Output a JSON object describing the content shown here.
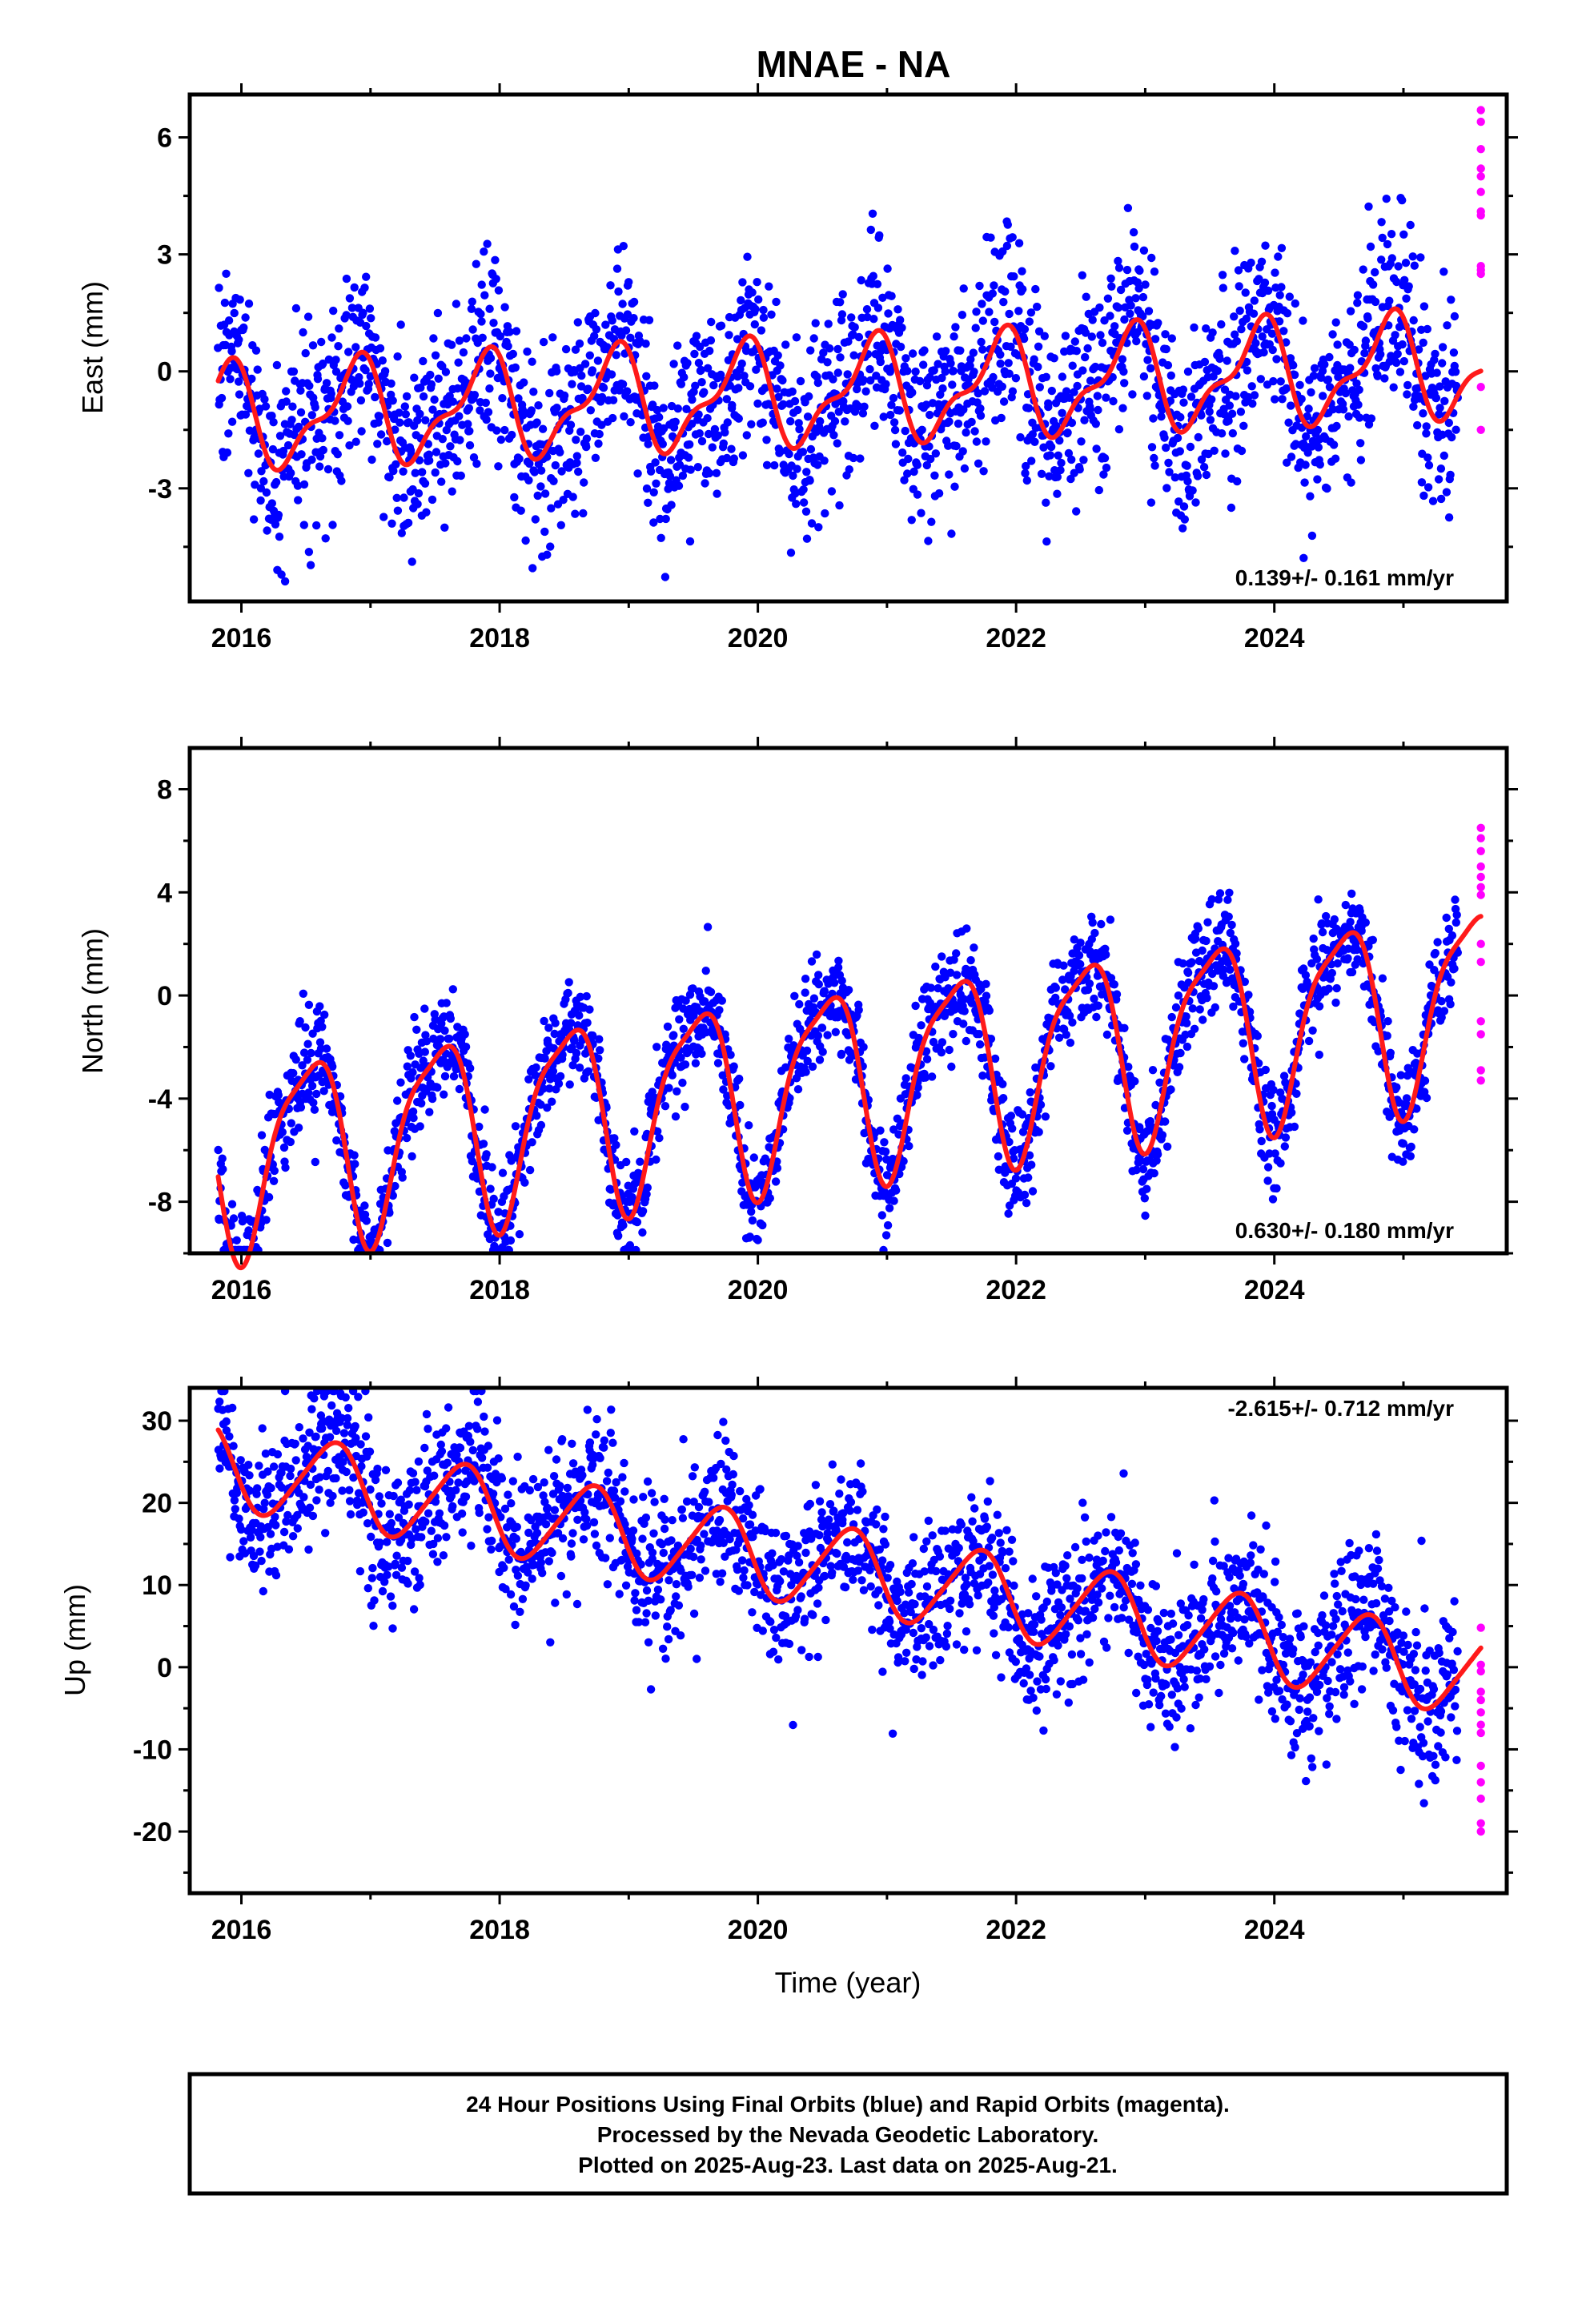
{
  "title": "MNAE - NA",
  "colors": {
    "final": "#0000ff",
    "rapid": "#ff00ff",
    "fit": "#ff1a1a",
    "frame": "#000000"
  },
  "x_axis": {
    "label": "Time (year)",
    "range": [
      2015.6,
      2025.8
    ],
    "ticks": [
      2016,
      2018,
      2020,
      2022,
      2024
    ]
  },
  "chart_data": [
    {
      "type": "scatter",
      "ylabel": "East (mm)",
      "ylim": [
        -5.9,
        7.1
      ],
      "yticks": [
        -3,
        0,
        3,
        6
      ],
      "rate_text": "0.139+/- 0.161 mm/yr",
      "rate_position": "bottom-right",
      "trend_mm_per_yr": 0.139,
      "offset": -0.55,
      "annual_amplitude": 1.2,
      "annual_phase": 0.62,
      "semiannual_amplitude": 0.5,
      "semiannual_phase": 0.35,
      "noise_sd": 1.25,
      "series": [
        {
          "name": "Final Orbits",
          "color": "#0000ff",
          "x_start": 2015.82,
          "x_end": 2025.42,
          "n_points": 2200
        },
        {
          "name": "Rapid Orbits",
          "color": "#ff00ff",
          "x": 2025.6,
          "values": [
            6.7,
            6.4,
            5.7,
            5.2,
            5.0,
            4.6,
            4.1,
            4.0,
            2.7,
            2.6,
            2.5,
            -0.4,
            -1.5
          ]
        }
      ]
    },
    {
      "type": "scatter",
      "ylabel": "North (mm)",
      "ylim": [
        -10.0,
        9.6
      ],
      "yticks": [
        -8,
        -4,
        0,
        4,
        8
      ],
      "rate_text": "0.630+/- 0.180 mm/yr",
      "rate_position": "bottom-right",
      "trend_mm_per_yr": 0.63,
      "offset": -3.3,
      "annual_amplitude": 3.6,
      "annual_phase": 0.27,
      "semiannual_amplitude": 0.9,
      "semiannual_phase": 0.1,
      "noise_sd": 1.05,
      "series": [
        {
          "name": "Final Orbits",
          "color": "#0000ff",
          "x_start": 2015.82,
          "x_end": 2025.42,
          "n_points": 2200
        },
        {
          "name": "Rapid Orbits",
          "color": "#ff00ff",
          "x": 2025.6,
          "values": [
            6.5,
            6.1,
            5.6,
            5.0,
            4.6,
            4.2,
            3.9,
            2.0,
            1.3,
            -1.0,
            -1.5,
            -2.9,
            -3.3
          ]
        }
      ]
    },
    {
      "type": "scatter",
      "ylabel": "Up (mm)",
      "ylim": [
        -27.5,
        34.0
      ],
      "yticks": [
        -20,
        -10,
        0,
        10,
        20,
        30
      ],
      "rate_text": "-2.615+/- 0.712 mm/yr",
      "rate_position": "top-right",
      "trend_mm_per_yr": -2.615,
      "offset": 12.3,
      "annual_amplitude": 5.0,
      "annual_phase": 0.45,
      "semiannual_amplitude": 0.7,
      "semiannual_phase": 0.2,
      "noise_sd": 4.6,
      "series": [
        {
          "name": "Final Orbits",
          "color": "#0000ff",
          "x_start": 2015.82,
          "x_end": 2025.42,
          "n_points": 2200
        },
        {
          "name": "Rapid Orbits",
          "color": "#ff00ff",
          "x": 2025.6,
          "values": [
            4.8,
            0.3,
            -0.5,
            -3.0,
            -4.0,
            -5.5,
            -7.0,
            -8.0,
            -12.0,
            -14.0,
            -16.0,
            -19.0,
            -20.0
          ]
        }
      ]
    }
  ],
  "footer": {
    "lines": [
      "24 Hour Positions Using Final Orbits (blue) and Rapid Orbits (magenta).",
      "Processed by the Nevada Geodetic Laboratory.",
      "Plotted on 2025-Aug-23. Last data on 2025-Aug-21."
    ]
  }
}
